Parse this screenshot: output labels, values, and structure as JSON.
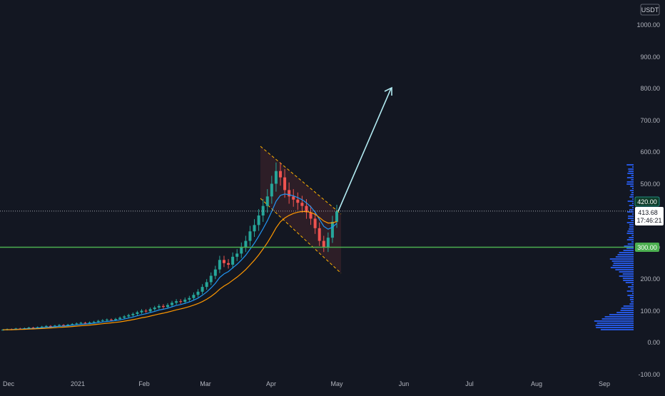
{
  "currency": "USDT",
  "price_scale": {
    "ticks": [
      "1000.00",
      "900.00",
      "800.00",
      "700.00",
      "600.00",
      "500.00",
      "400.00",
      "300.00",
      "200.00",
      "100.00",
      "0.00",
      "-100.00"
    ],
    "tick_values": [
      1000,
      900,
      800,
      700,
      600,
      500,
      400,
      300,
      200,
      100,
      0,
      -100
    ],
    "ylim": [
      -100,
      1070
    ]
  },
  "time_scale": {
    "labels": [
      "Dec",
      "2021",
      "Feb",
      "Mar",
      "Apr",
      "May",
      "Jun",
      "Jul",
      "Aug",
      "Sep"
    ]
  },
  "markers": {
    "level_420": "420.00",
    "current_price": "413.68",
    "countdown": "17:46:21",
    "level_300": "300.00"
  },
  "colors": {
    "background": "#131722",
    "up_candle": "#26a69a",
    "down_candle": "#ef5350",
    "ema_fast": "#2196f3",
    "ema_slow": "#ff9800",
    "support_line": "#4caf50",
    "channel_lines": "#ffb300",
    "arrow": "#b2ebf2",
    "volume_profile_blue": "#2962ff",
    "volume_profile_orange": "#ffb300"
  },
  "chart_data": {
    "type": "candlestick",
    "support_level": 300,
    "resistance_level": 420,
    "current_price": 413.68,
    "closes": [
      40,
      42,
      41,
      44,
      43,
      45,
      47,
      46,
      48,
      50,
      52,
      51,
      53,
      55,
      54,
      56,
      58,
      60,
      62,
      61,
      63,
      65,
      68,
      70,
      72,
      71,
      74,
      78,
      82,
      86,
      90,
      95,
      100,
      98,
      105,
      110,
      115,
      112,
      118,
      125,
      130,
      128,
      135,
      140,
      150,
      160,
      175,
      190,
      210,
      230,
      260,
      250,
      245,
      270,
      280,
      300,
      320,
      350,
      370,
      400,
      430,
      460,
      500,
      540,
      520,
      480,
      460,
      450,
      440,
      430,
      410,
      390,
      360,
      320,
      300,
      330,
      380,
      413
    ]
  }
}
